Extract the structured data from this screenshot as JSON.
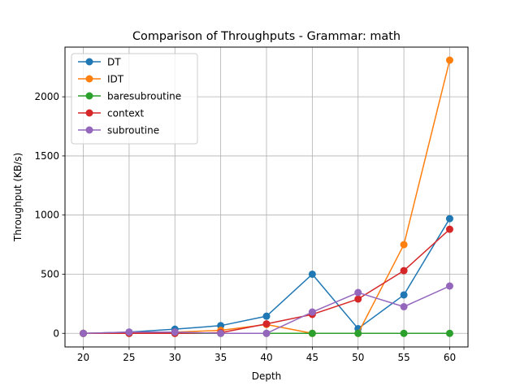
{
  "chart_data": {
    "type": "line",
    "title": "Comparison of Throughputs - Grammar: math",
    "xlabel": "Depth",
    "ylabel": "Throughput (KB/s)",
    "x": [
      20,
      25,
      30,
      35,
      40,
      45,
      50,
      55,
      60
    ],
    "xticks": [
      "20",
      "25",
      "30",
      "35",
      "40",
      "45",
      "50",
      "55",
      "60"
    ],
    "yticks": [
      "0",
      "500",
      "1000",
      "1500",
      "2000"
    ],
    "ytick_values": [
      0,
      500,
      1000,
      1500,
      2000
    ],
    "xlim": [
      18,
      62
    ],
    "ylim": [
      -115,
      2420
    ],
    "grid": true,
    "legend_position": "top-left",
    "series": [
      {
        "name": "DT",
        "color": "#1f77b4",
        "values": [
          0,
          10,
          35,
          65,
          145,
          500,
          40,
          325,
          970
        ]
      },
      {
        "name": "IDT",
        "color": "#ff7f0e",
        "values": [
          0,
          5,
          10,
          25,
          75,
          0,
          0,
          750,
          2310
        ]
      },
      {
        "name": "baresubroutine",
        "color": "#2ca02c",
        "values": [
          0,
          0,
          0,
          0,
          0,
          0,
          0,
          0,
          0
        ]
      },
      {
        "name": "context",
        "color": "#d62728",
        "values": [
          0,
          0,
          0,
          5,
          80,
          160,
          290,
          530,
          880
        ]
      },
      {
        "name": "subroutine",
        "color": "#9467bd",
        "values": [
          0,
          10,
          10,
          0,
          0,
          180,
          345,
          225,
          400
        ]
      }
    ]
  }
}
